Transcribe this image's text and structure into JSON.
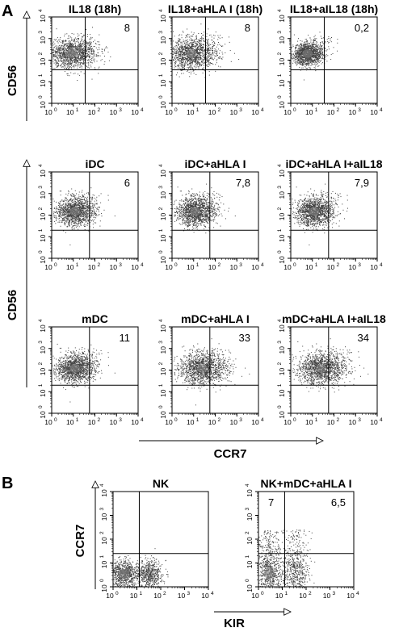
{
  "figure": {
    "panel_labels": [
      "A",
      "B"
    ],
    "panelA_yaxis_label": "CD56",
    "panelA_xaxis_label": "CCR7",
    "panelB_yaxis_label": "CCR7",
    "panelB_xaxis_label": "KIR",
    "tick_labels": [
      "10",
      "10",
      "10",
      "10",
      "10"
    ],
    "tick_exponents": [
      "0",
      "1",
      "2",
      "3",
      "4"
    ]
  },
  "chart_data": [
    {
      "type": "scatter",
      "title": "IL18 (18h)",
      "xlabel": "CCR7",
      "ylabel": "CD56",
      "xscale": "log",
      "yscale": "log",
      "xlim": [
        1,
        10000
      ],
      "ylim": [
        1,
        10000
      ],
      "quadrant_labels": [
        {
          "position": "top-right",
          "value": "8"
        }
      ],
      "cloud": {
        "x_center": 8,
        "y_center": 200,
        "spread": "wide"
      },
      "color": "#444444"
    },
    {
      "type": "scatter",
      "title": "IL18+aHLA I (18h)",
      "xlabel": "CCR7",
      "ylabel": "CD56",
      "xscale": "log",
      "yscale": "log",
      "xlim": [
        1,
        10000
      ],
      "ylim": [
        1,
        10000
      ],
      "quadrant_labels": [
        {
          "position": "top-right",
          "value": "8"
        }
      ],
      "cloud": {
        "x_center": 8,
        "y_center": 200,
        "spread": "wide"
      },
      "color": "#444444"
    },
    {
      "type": "scatter",
      "title": "IL18+aIL18 (18h)",
      "xlabel": "CCR7",
      "ylabel": "CD56",
      "xscale": "log",
      "yscale": "log",
      "xlim": [
        1,
        10000
      ],
      "ylim": [
        1,
        10000
      ],
      "quadrant_labels": [
        {
          "position": "top-right",
          "value": "0,2"
        }
      ],
      "cloud": {
        "x_center": 6,
        "y_center": 200,
        "spread": "tight"
      },
      "color": "#444444"
    },
    {
      "type": "scatter",
      "title": "iDC",
      "xlabel": "CCR7",
      "ylabel": "CD56",
      "xscale": "log",
      "yscale": "log",
      "xlim": [
        1,
        10000
      ],
      "ylim": [
        1,
        10000
      ],
      "quadrant_labels": [
        {
          "position": "top-right",
          "value": "6"
        }
      ],
      "cloud": {
        "x_center": 12,
        "y_center": 150,
        "spread": "medium"
      },
      "color": "#444444"
    },
    {
      "type": "scatter",
      "title": "iDC+aHLA I",
      "xlabel": "CCR7",
      "ylabel": "CD56",
      "xscale": "log",
      "yscale": "log",
      "xlim": [
        1,
        10000
      ],
      "ylim": [
        1,
        10000
      ],
      "quadrant_labels": [
        {
          "position": "top-right",
          "value": "7,8"
        }
      ],
      "cloud": {
        "x_center": 12,
        "y_center": 150,
        "spread": "medium"
      },
      "color": "#444444"
    },
    {
      "type": "scatter",
      "title": "iDC+aHLA I+aIL18",
      "xlabel": "CCR7",
      "ylabel": "CD56",
      "xscale": "log",
      "yscale": "log",
      "xlim": [
        1,
        10000
      ],
      "ylim": [
        1,
        10000
      ],
      "quadrant_labels": [
        {
          "position": "top-right",
          "value": "7,9"
        }
      ],
      "cloud": {
        "x_center": 12,
        "y_center": 150,
        "spread": "medium"
      },
      "color": "#444444"
    },
    {
      "type": "scatter",
      "title": "mDC",
      "xlabel": "CCR7",
      "ylabel": "CD56",
      "xscale": "log",
      "yscale": "log",
      "xlim": [
        1,
        10000
      ],
      "ylim": [
        1,
        10000
      ],
      "quadrant_labels": [
        {
          "position": "top-right",
          "value": "11"
        }
      ],
      "cloud": {
        "x_center": 12,
        "y_center": 120,
        "spread": "medium"
      },
      "color": "#444444"
    },
    {
      "type": "scatter",
      "title": "mDC+aHLA I",
      "xlabel": "CCR7",
      "ylabel": "CD56",
      "xscale": "log",
      "yscale": "log",
      "xlim": [
        1,
        10000
      ],
      "ylim": [
        1,
        10000
      ],
      "quadrant_labels": [
        {
          "position": "top-right",
          "value": "33"
        }
      ],
      "cloud": {
        "x_center": 25,
        "y_center": 120,
        "spread": "wide"
      },
      "color": "#444444"
    },
    {
      "type": "scatter",
      "title": "mDC+aHLA I+aIL18",
      "xlabel": "CCR7",
      "ylabel": "CD56",
      "xscale": "log",
      "yscale": "log",
      "xlim": [
        1,
        10000
      ],
      "ylim": [
        1,
        10000
      ],
      "quadrant_labels": [
        {
          "position": "top-right",
          "value": "34"
        }
      ],
      "cloud": {
        "x_center": 25,
        "y_center": 120,
        "spread": "wide"
      },
      "color": "#444444"
    },
    {
      "type": "scatter",
      "title": "NK",
      "xlabel": "KIR",
      "ylabel": "CCR7",
      "xscale": "log",
      "yscale": "log",
      "xlim": [
        1,
        10000
      ],
      "ylim": [
        1,
        10000
      ],
      "quadrant_labels": [],
      "cloud": {
        "x_center": 6,
        "y_center": 3,
        "spread": "bimodal"
      },
      "color": "#444444"
    },
    {
      "type": "scatter",
      "title": "NK+mDC+aHLA I",
      "xlabel": "KIR",
      "ylabel": "CCR7",
      "xscale": "log",
      "yscale": "log",
      "xlim": [
        1,
        10000
      ],
      "ylim": [
        1,
        10000
      ],
      "quadrant_labels": [
        {
          "position": "top-left",
          "value": "7"
        },
        {
          "position": "top-right",
          "value": "6,5"
        }
      ],
      "cloud": {
        "x_center": 6,
        "y_center": 5,
        "spread": "bimodal-tall"
      },
      "color": "#444444"
    }
  ]
}
